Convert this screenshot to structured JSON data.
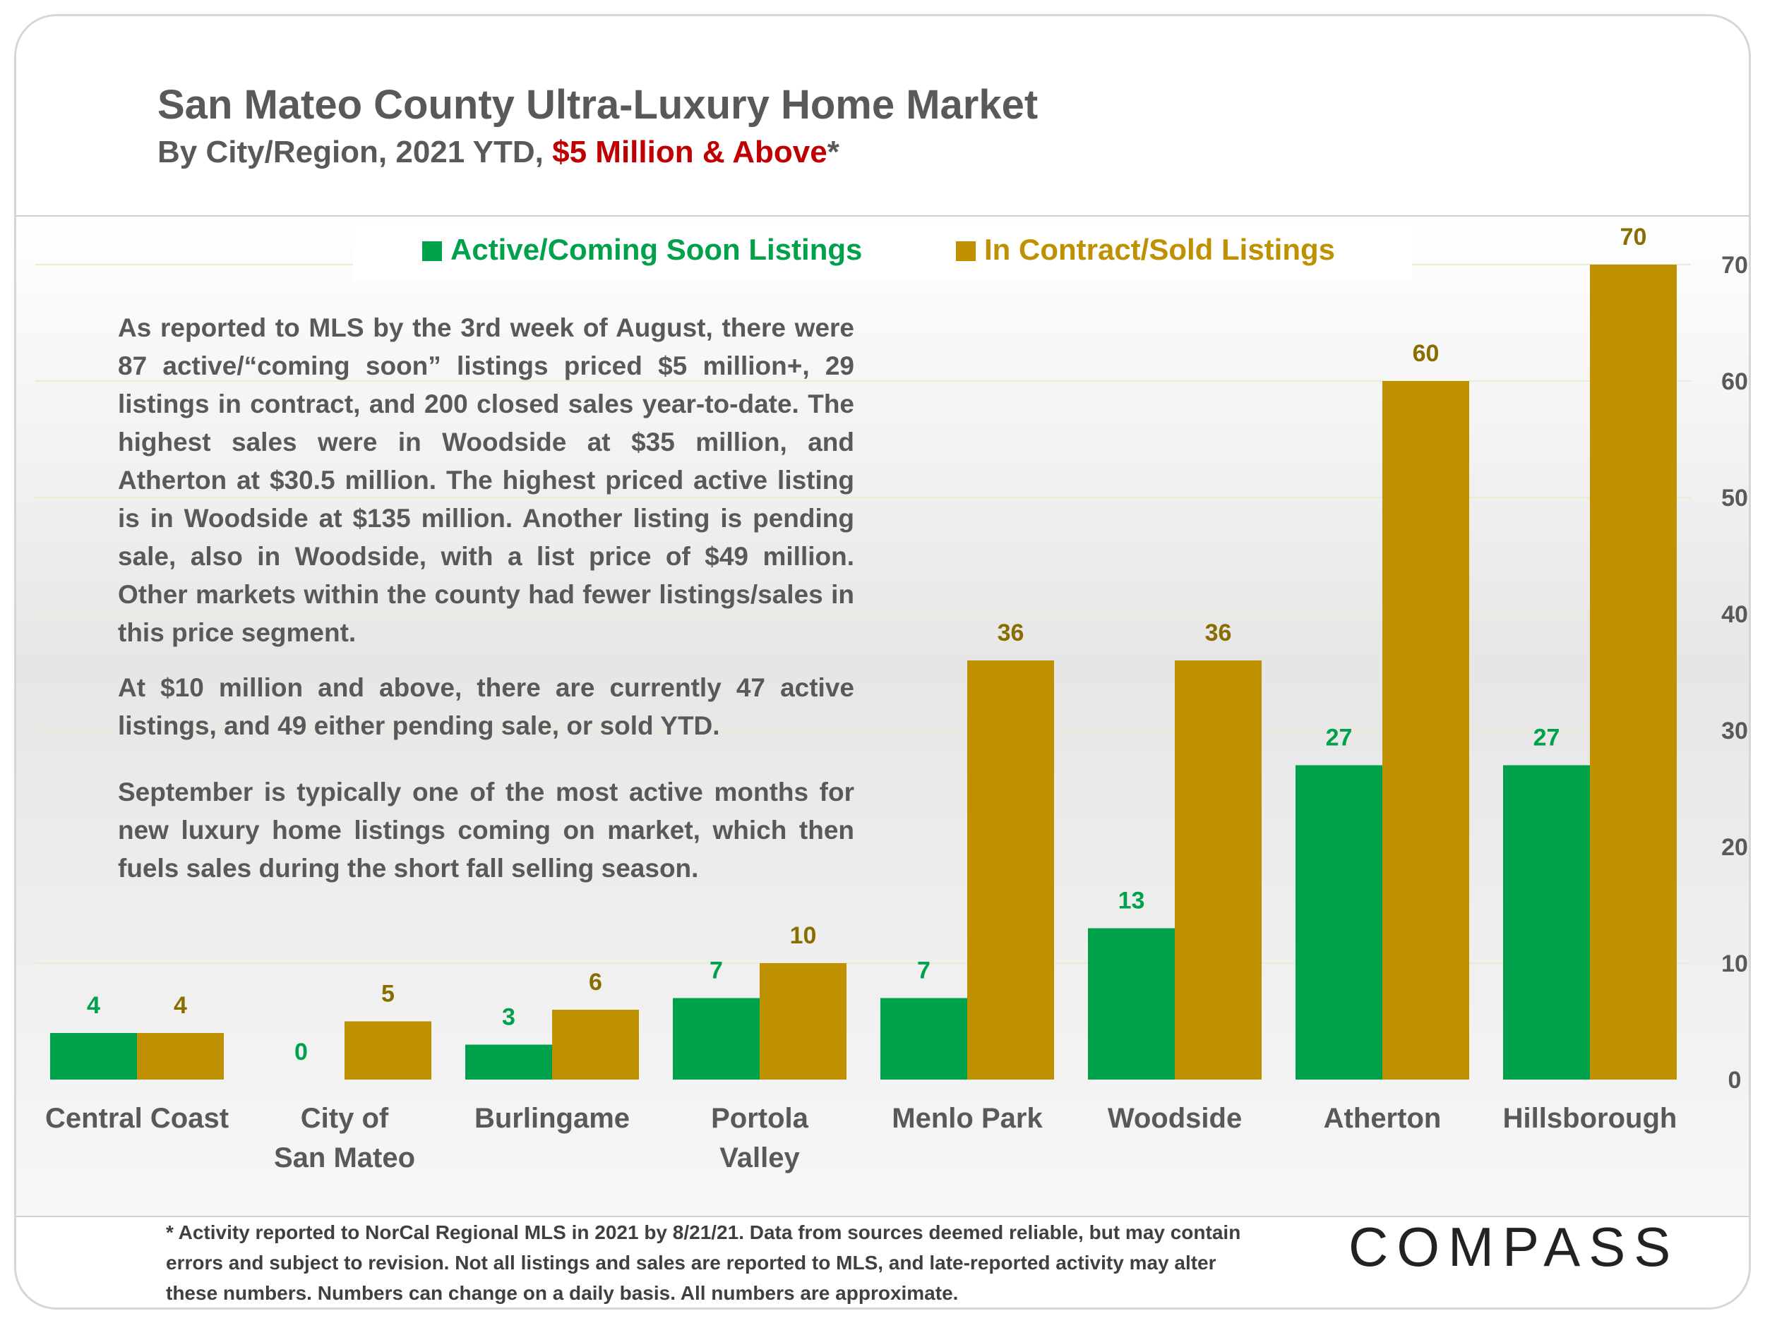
{
  "header": {
    "title": "San Mateo County Ultra-Luxury Home Market",
    "subtitle_prefix": "By City/Region, 2021 YTD, ",
    "subtitle_highlight": "$5 Million & Above",
    "subtitle_suffix": "*"
  },
  "notes": {
    "p1": "As reported to MLS by the 3rd week of August, there were 87 active/“coming soon” listings priced $5 million+, 29 listings in contract, and 200 closed sales year-to-date. The highest sales were in Woodside at $35 million, and Atherton at $30.5 million. The highest priced active listing is in Woodside at $135 million. Another listing is pending sale, also in Woodside, with a list price of $49 million. Other markets within the county had fewer listings/sales in this price segment.",
    "p2": "At $10 million and above, there are currently 47 active listings, and 49 either pending sale, or sold YTD.",
    "p3": "September is typically one of the most active months for new luxury home listings coming on market, which then fuels sales during the short fall selling season."
  },
  "footer": {
    "text": "* Activity reported to NorCal Regional MLS in 2021 by 8/21/21. Data from sources deemed reliable, but may contain errors and subject to revision. Not all listings and sales are reported to MLS, and late-reported activity may alter these numbers. Numbers can change on a daily basis. All numbers are approximate."
  },
  "logo": {
    "text": "COMPASS"
  },
  "chart_data": {
    "type": "bar",
    "categories": [
      [
        "Central Coast"
      ],
      [
        "City of",
        "San Mateo"
      ],
      [
        "Burlingame"
      ],
      [
        "Portola",
        "Valley"
      ],
      [
        "Menlo Park"
      ],
      [
        "Woodside"
      ],
      [
        "Atherton"
      ],
      [
        "Hillsborough"
      ]
    ],
    "series": [
      {
        "name": "Active/Coming Soon Listings",
        "color": "#00a14b",
        "values": [
          4,
          0,
          3,
          7,
          7,
          13,
          27,
          27
        ]
      },
      {
        "name": "In Contract/Sold Listings",
        "color": "#bf9000",
        "values": [
          4,
          5,
          6,
          10,
          36,
          36,
          60,
          70
        ]
      }
    ],
    "yticks": [
      0,
      10,
      20,
      30,
      40,
      50,
      60,
      70
    ],
    "ylim": [
      0,
      70
    ],
    "y_axis_side": "right",
    "legend_position": "top",
    "data_labels": true,
    "grid": true,
    "colors": {
      "active_label": "#00a14b",
      "sold_label": "#8a6d00",
      "tick_text": "#595959",
      "gridline": "#e6edd0"
    }
  }
}
